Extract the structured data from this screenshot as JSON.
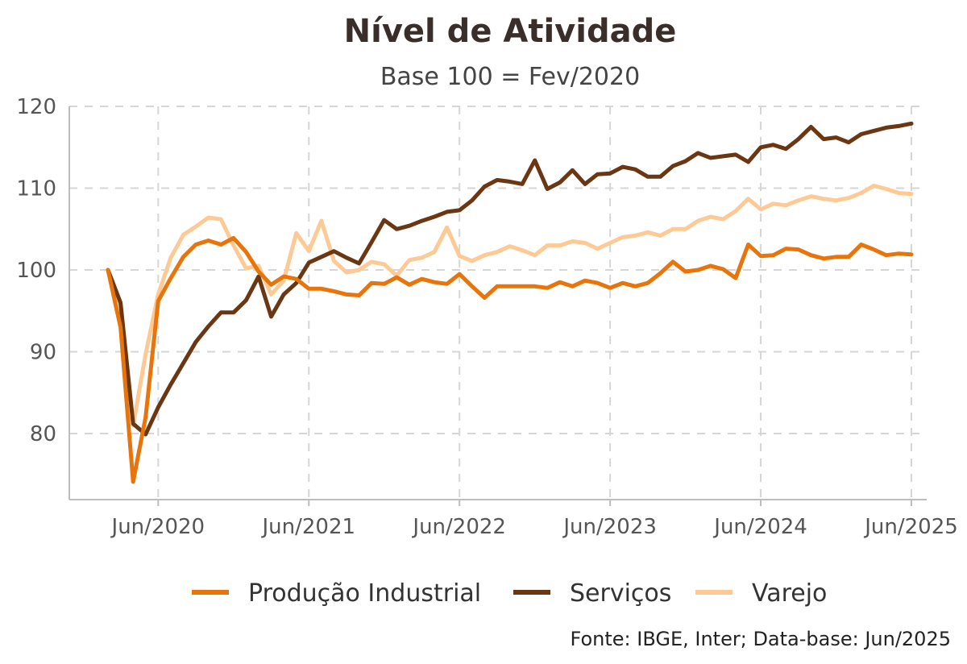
{
  "chart_data": {
    "type": "line",
    "title": "Nível de Atividade",
    "subtitle": "Base 100 = Fev/2020",
    "caption": "Fonte: IBGE, Inter; Data-base: Jun/2025",
    "x_start": "Fev/2020",
    "x_end": "Jun/2025",
    "x_tick_labels": [
      "Jun/2020",
      "Jun/2021",
      "Jun/2022",
      "Jun/2023",
      "Jun/2024",
      "Jun/2025"
    ],
    "y_ticks": [
      80,
      90,
      100,
      110,
      120
    ],
    "ylim": [
      74,
      120
    ],
    "grid": true,
    "legend_position": "bottom",
    "series": [
      {
        "name": "Produção Industrial",
        "color": "#e8740c",
        "values": [
          100.0,
          93.0,
          74.1,
          82.0,
          96.2,
          99.0,
          101.6,
          103.1,
          103.6,
          103.1,
          103.9,
          102.2,
          99.8,
          98.2,
          99.2,
          98.9,
          97.7,
          97.7,
          97.4,
          97.0,
          96.9,
          98.4,
          98.3,
          99.1,
          98.2,
          98.9,
          98.5,
          98.3,
          99.5,
          98.0,
          96.6,
          98.0,
          98.0,
          98.0,
          98.0,
          97.8,
          98.5,
          98.0,
          98.7,
          98.4,
          97.8,
          98.4,
          98.0,
          98.4,
          99.6,
          101.0,
          99.8,
          100.0,
          100.5,
          100.1,
          99.0,
          103.1,
          101.7,
          101.8,
          102.6,
          102.5,
          101.8,
          101.4,
          101.6,
          101.6,
          103.1,
          102.5,
          101.8,
          102.0,
          101.9
        ]
      },
      {
        "name": "Serviços",
        "color": "#6b3612",
        "values": [
          100.0,
          96.0,
          81.2,
          79.9,
          83.2,
          86.0,
          88.6,
          91.2,
          93.1,
          94.8,
          94.8,
          96.3,
          99.2,
          94.3,
          97.0,
          98.4,
          100.9,
          101.6,
          102.3,
          101.5,
          100.8,
          103.4,
          106.1,
          105.0,
          105.4,
          106.0,
          106.5,
          107.1,
          107.3,
          108.5,
          110.2,
          111.0,
          110.8,
          110.5,
          113.4,
          109.9,
          110.7,
          112.2,
          110.5,
          111.7,
          111.8,
          112.6,
          112.3,
          111.4,
          111.4,
          112.7,
          113.3,
          114.3,
          113.7,
          113.9,
          114.1,
          113.2,
          115.0,
          115.3,
          114.8,
          116.0,
          117.5,
          116.0,
          116.2,
          115.6,
          116.6,
          117.0,
          117.4,
          117.6,
          117.9
        ]
      },
      {
        "name": "Varejo",
        "color": "#fdc994",
        "values": [
          100.0,
          95.5,
          81.0,
          89.7,
          97.0,
          101.5,
          104.3,
          105.3,
          106.4,
          106.2,
          103.0,
          100.2,
          100.5,
          97.0,
          98.7,
          104.5,
          102.3,
          106.0,
          101.1,
          99.7,
          100.0,
          101.0,
          100.7,
          99.3,
          101.2,
          101.5,
          102.2,
          105.2,
          101.7,
          101.1,
          101.8,
          102.2,
          102.9,
          102.4,
          101.8,
          103.0,
          103.0,
          103.5,
          103.3,
          102.6,
          103.3,
          104.0,
          104.2,
          104.6,
          104.2,
          105.0,
          105.0,
          106.0,
          106.5,
          106.2,
          107.2,
          108.7,
          107.4,
          108.1,
          107.9,
          108.5,
          109.0,
          108.7,
          108.5,
          108.8,
          109.4,
          110.3,
          109.9,
          109.4,
          109.3
        ]
      }
    ]
  }
}
